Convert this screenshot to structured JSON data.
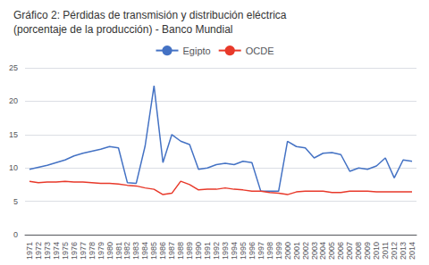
{
  "chart_data": {
    "type": "line",
    "title": "Gráfico 2: Pérdidas de transmisión y distribución eléctrica",
    "subtitle": "(porcentaje de la producción) - Banco Mundial",
    "categories": [
      "1971",
      "1972",
      "1973",
      "1974",
      "1975",
      "1976",
      "1977",
      "1978",
      "1979",
      "1980",
      "1981",
      "1982",
      "1983",
      "1984",
      "1985",
      "1986",
      "1987",
      "1988",
      "1989",
      "1990",
      "1991",
      "1992",
      "1993",
      "1994",
      "1995",
      "1996",
      "1997",
      "1998",
      "1999",
      "2000",
      "2001",
      "2002",
      "2003",
      "2004",
      "2005",
      "2006",
      "2007",
      "2008",
      "2009",
      "2010",
      "2011",
      "2012",
      "2013",
      "2014"
    ],
    "series": [
      {
        "name": "Egipto",
        "color": "#4472c4",
        "values": [
          9.8,
          10.1,
          10.4,
          10.8,
          11.2,
          11.8,
          12.2,
          12.5,
          12.8,
          13.2,
          13.0,
          7.8,
          7.7,
          13.3,
          22.3,
          10.8,
          15.0,
          14.0,
          13.5,
          9.8,
          10.0,
          10.5,
          10.7,
          10.5,
          11.0,
          10.8,
          6.5,
          6.5,
          6.5,
          14.0,
          13.2,
          13.0,
          11.5,
          12.2,
          12.3,
          12.0,
          9.5,
          10.0,
          9.8,
          10.3,
          11.5,
          8.5,
          11.2,
          11.0
        ]
      },
      {
        "name": "OCDE",
        "color": "#e8392a",
        "values": [
          8.0,
          7.8,
          7.9,
          7.9,
          8.0,
          7.9,
          7.9,
          7.8,
          7.7,
          7.7,
          7.6,
          7.4,
          7.3,
          7.0,
          6.8,
          6.0,
          6.2,
          8.0,
          7.5,
          6.7,
          6.8,
          6.8,
          7.0,
          6.8,
          6.7,
          6.5,
          6.5,
          6.3,
          6.2,
          6.0,
          6.4,
          6.5,
          6.5,
          6.5,
          6.3,
          6.3,
          6.5,
          6.5,
          6.5,
          6.4,
          6.4,
          6.4,
          6.4,
          6.4
        ]
      }
    ],
    "ylim": [
      0,
      25
    ],
    "yticks": [
      0,
      5,
      10,
      15,
      20,
      25
    ],
    "grid": true,
    "legend": "top"
  }
}
